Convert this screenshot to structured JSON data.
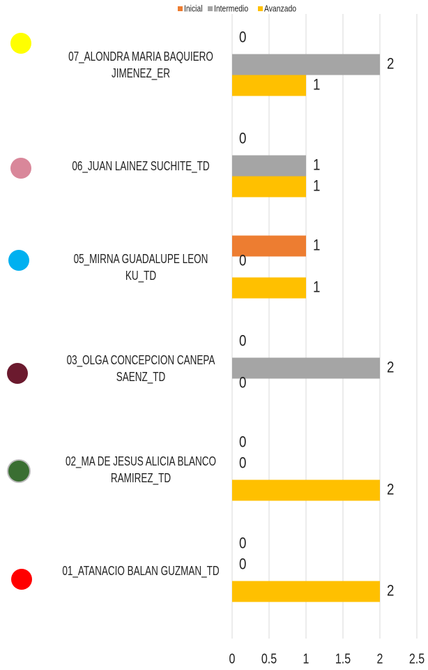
{
  "chart_data": {
    "type": "bar",
    "orientation": "horizontal",
    "categories": [
      "07_ALONDRA MARIA BAQUIERO JIMENEZ_ER",
      "06_JUAN LAINEZ SUCHITE_TD",
      "05_MIRNA GUADALUPE LEON KU_TD",
      "03_OLGA CONCEPCION CANEPA SAENZ_TD",
      "02_MA DE JESUS ALICIA BLANCO RAMIREZ_TD",
      "01_ATANACIO BALAN GUZMAN_TD"
    ],
    "series": [
      {
        "name": "Inicial",
        "color": "#ed7d31",
        "values": [
          0,
          0,
          1,
          0,
          0,
          0
        ]
      },
      {
        "name": "Intermedio",
        "color": "#a5a5a5",
        "values": [
          2,
          1,
          0,
          2,
          0,
          0
        ]
      },
      {
        "name": "Avanzado",
        "color": "#ffc000",
        "values": [
          1,
          1,
          1,
          0,
          2,
          2
        ]
      }
    ],
    "xlim": [
      0,
      2.5
    ],
    "xticks": [
      0,
      0.5,
      1,
      1.5,
      2,
      2.5
    ],
    "grid": true,
    "legend": "top"
  }
}
